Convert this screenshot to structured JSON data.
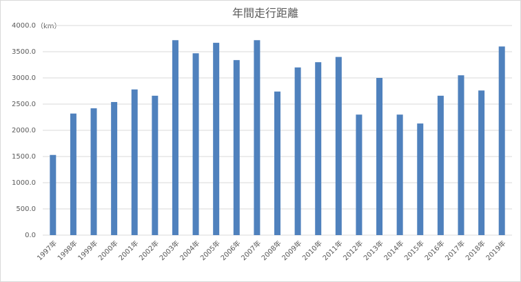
{
  "chart_data": {
    "type": "bar",
    "title": "年間走行距離",
    "y_label": "（km）",
    "categories": [
      "1997年",
      "1998年",
      "1999年",
      "2000年",
      "2001年",
      "2002年",
      "2003年",
      "2004年",
      "2005年",
      "2006年",
      "2007年",
      "2008年",
      "2009年",
      "2010年",
      "2011年",
      "2012年",
      "2013年",
      "2014年",
      "2015年",
      "2016年",
      "2017年",
      "2018年",
      "2019年"
    ],
    "values": [
      1530,
      2320,
      2420,
      2540,
      2780,
      2660,
      3720,
      3470,
      3670,
      3340,
      3720,
      2740,
      3200,
      3300,
      3400,
      2300,
      3000,
      2300,
      2130,
      2660,
      3050,
      2760,
      3600
    ],
    "color": "#4f81bd",
    "ylim": [
      0,
      4000
    ],
    "yticks": [
      {
        "value": 0,
        "label": "0.0"
      },
      {
        "value": 500,
        "label": "500.0"
      },
      {
        "value": 1000,
        "label": "1000.0"
      },
      {
        "value": 1500,
        "label": "1500.0"
      },
      {
        "value": 2000,
        "label": "2000.0"
      },
      {
        "value": 2500,
        "label": "2500.0"
      },
      {
        "value": 3000,
        "label": "3000.0"
      },
      {
        "value": 3500,
        "label": "3500.0"
      },
      {
        "value": 4000,
        "label": "4000.0"
      }
    ],
    "grid": true
  }
}
